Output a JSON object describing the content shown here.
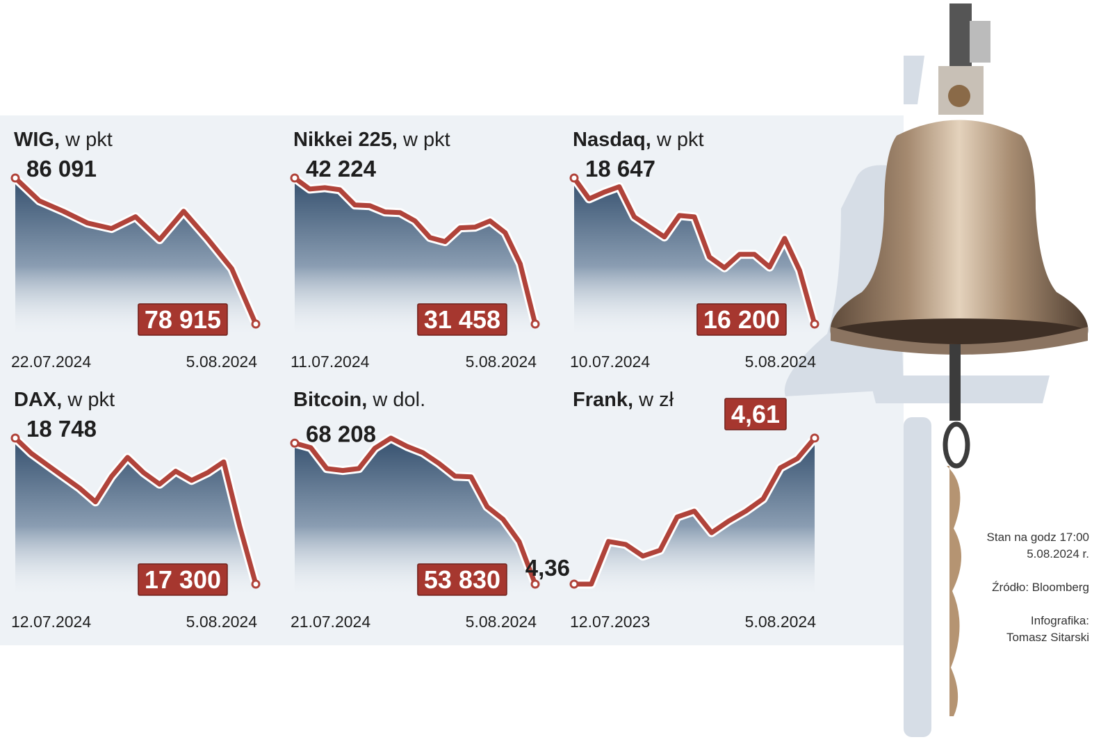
{
  "chart_data": [
    {
      "type": "line",
      "title": "WIG,",
      "unit": " w pkt",
      "categories": [
        "22.07.2024",
        null,
        null,
        null,
        null,
        null,
        null,
        null,
        null,
        null,
        "5.08.2024"
      ],
      "values": [
        86091,
        84969,
        84459,
        83880,
        83609,
        84187,
        83065,
        84459,
        83099,
        81637,
        78915
      ],
      "value_labels": [
        "86 091",
        null,
        null,
        null,
        null,
        null,
        null,
        null,
        null,
        null,
        "78 915"
      ],
      "color": "#b0433a"
    },
    {
      "type": "line",
      "title": "Nikkei 225,",
      "unit": " w pkt",
      "categories": [
        "11.07.2024",
        null,
        null,
        null,
        null,
        null,
        null,
        null,
        null,
        null,
        null,
        null,
        null,
        null,
        null,
        null,
        "5.08.2024"
      ],
      "values": [
        42224,
        41408,
        41510,
        41357,
        40235,
        40184,
        39725,
        39674,
        39062,
        37838,
        37532,
        38552,
        38603,
        39062,
        38195,
        35900,
        31458
      ],
      "value_labels": [
        "42 224",
        null,
        null,
        null,
        null,
        null,
        null,
        null,
        null,
        null,
        null,
        null,
        null,
        null,
        null,
        null,
        "31 458"
      ],
      "color": "#b0433a"
    },
    {
      "type": "line",
      "title": "Nasdaq,",
      "unit": " w pkt",
      "categories": [
        "10.07.2024",
        null,
        null,
        null,
        null,
        null,
        null,
        null,
        null,
        null,
        null,
        null,
        null,
        null,
        null,
        null,
        "5.08.2024"
      ],
      "values": [
        18647,
        18299,
        18411,
        18501,
        17996,
        17828,
        17660,
        18019,
        17996,
        17323,
        17143,
        17368,
        17368,
        17154,
        17637,
        17099,
        16200
      ],
      "value_labels": [
        "18 647",
        null,
        null,
        null,
        null,
        null,
        null,
        null,
        null,
        null,
        null,
        null,
        null,
        null,
        null,
        null,
        "16 200"
      ],
      "color": "#b0433a"
    },
    {
      "type": "line",
      "title": "DAX,",
      "unit": " w pkt",
      "categories": [
        "12.07.2024",
        null,
        null,
        null,
        null,
        null,
        null,
        null,
        null,
        null,
        null,
        null,
        null,
        null,
        null,
        "5.08.2024"
      ],
      "values": [
        18748,
        18596,
        18481,
        18367,
        18253,
        18116,
        18367,
        18557,
        18405,
        18291,
        18420,
        18329,
        18405,
        18512,
        17872,
        17300
      ],
      "value_labels": [
        "18 748",
        null,
        null,
        null,
        null,
        null,
        null,
        null,
        null,
        null,
        null,
        null,
        null,
        null,
        null,
        "17 300"
      ],
      "color": "#b0433a"
    },
    {
      "type": "line",
      "title": "Bitcoin,",
      "unit": " w dol.",
      "categories": [
        "21.07.2024",
        null,
        null,
        null,
        null,
        null,
        null,
        null,
        null,
        null,
        null,
        null,
        null,
        null,
        null,
        "5.08.2024"
      ],
      "values": [
        68208,
        67754,
        65616,
        65422,
        65616,
        67690,
        68726,
        67884,
        67236,
        66134,
        64838,
        64774,
        61728,
        60432,
        58164,
        53830
      ],
      "value_labels": [
        "68 208",
        null,
        null,
        null,
        null,
        null,
        null,
        null,
        null,
        null,
        null,
        null,
        null,
        null,
        null,
        "53 830"
      ],
      "color": "#b0433a"
    },
    {
      "type": "line",
      "title": "Frank,",
      "unit": " w zł",
      "categories": [
        "12.07.2023",
        null,
        null,
        null,
        null,
        null,
        null,
        null,
        null,
        null,
        null,
        null,
        null,
        null,
        "5.08.2024"
      ],
      "values": [
        4.36,
        4.36,
        4.433,
        4.428,
        4.408,
        4.418,
        4.475,
        4.485,
        4.448,
        4.468,
        4.485,
        4.506,
        4.559,
        4.575,
        4.61
      ],
      "value_labels": [
        "4,36",
        null,
        null,
        null,
        null,
        null,
        null,
        null,
        null,
        null,
        null,
        null,
        null,
        null,
        "4,61"
      ],
      "color": "#b0433a"
    }
  ],
  "notes": {
    "status": "Stan na godz 17:00",
    "date": "5.08.2024 r.",
    "source": "Źródło: Bloomberg",
    "credit_label": "Infografika:",
    "credit_name": "Tomasz Sitarski"
  }
}
